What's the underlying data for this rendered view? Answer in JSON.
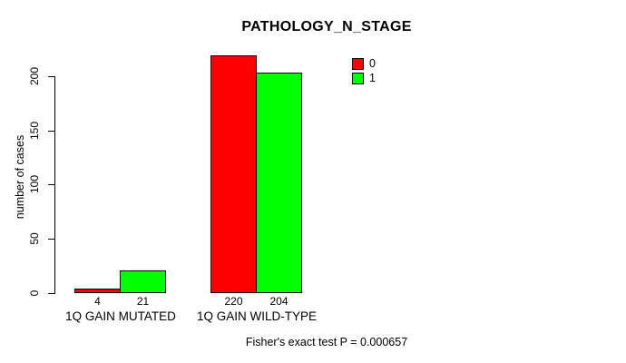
{
  "chart_data": {
    "type": "bar",
    "title": "PATHOLOGY_N_STAGE",
    "categories": [
      "1Q GAIN MUTATED",
      "1Q GAIN WILD-TYPE"
    ],
    "series": [
      {
        "name": "0",
        "color": "#ff0000",
        "values": [
          4,
          220
        ]
      },
      {
        "name": "1",
        "color": "#00ff00",
        "values": [
          21,
          204
        ]
      }
    ],
    "xlabel": "",
    "ylabel": "number of cases",
    "ylim": [
      0,
      200
    ],
    "yticks": [
      0,
      50,
      100,
      150,
      200
    ],
    "grid": false,
    "show_value_labels": true,
    "legend_position": "top-right",
    "legend": [
      {
        "label": "0",
        "color": "#ff0000"
      },
      {
        "label": "1",
        "color": "#00ff00"
      }
    ],
    "footnote": "Fisher's exact test P = 0.000657",
    "colors": {
      "axis": "#000000",
      "bar_border": "#000000",
      "background": "#ffffff"
    }
  }
}
